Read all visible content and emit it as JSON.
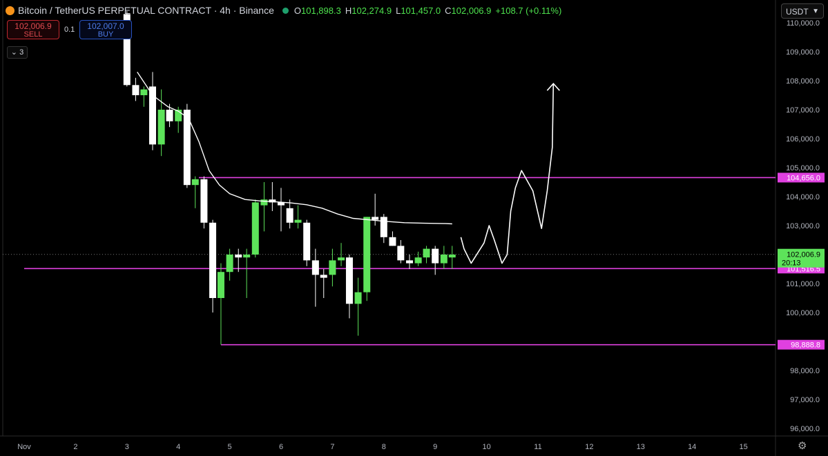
{
  "header": {
    "title": "Bitcoin / TetherUS PERPETUAL CONTRACT · 4h · Binance",
    "open_label": "O",
    "open": "101,898.3",
    "high_label": "H",
    "high": "102,274.9",
    "low_label": "L",
    "low": "101,457.0",
    "close_label": "C",
    "close": "102,006.9",
    "change": "+108.7 (+0.11%)"
  },
  "trade": {
    "sell_price": "102,006.9",
    "sell_label": "SELL",
    "buy_price": "102,007.0",
    "buy_label": "BUY",
    "quantity": "0.1"
  },
  "collapse_count": "3",
  "currency": "USDT",
  "colors": {
    "background": "#000000",
    "up_candle": "#5de35a",
    "down_candle": "#ffffff",
    "level_line": "#e040e0",
    "moving_average": "#ffffff",
    "axis_text": "#b2b5be",
    "price_tag": "#5de35a"
  },
  "chart_data": {
    "type": "candlestick",
    "timeframe": "4h",
    "ylim": [
      95700,
      110400
    ],
    "x_ticks": [
      "Nov",
      "2",
      "3",
      "4",
      "5",
      "6",
      "7",
      "8",
      "9",
      "10",
      "11",
      "12",
      "13",
      "14",
      "15"
    ],
    "y_ticks": [
      "110,000.0",
      "109,000.0",
      "108,000.0",
      "107,000.0",
      "106,000.0",
      "105,000.0",
      "104,000.0",
      "103,000.0",
      "101,000.0",
      "100,000.0",
      "98,000.0",
      "97,000.0",
      "96,000.0"
    ],
    "candles": [
      {
        "day": 3.0,
        "o": 110300,
        "h": 110400,
        "l": 107800,
        "c": 107850
      },
      {
        "day": 3.17,
        "o": 107850,
        "h": 108100,
        "l": 107300,
        "c": 107500
      },
      {
        "day": 3.33,
        "o": 107500,
        "h": 107800,
        "l": 107100,
        "c": 107700
      },
      {
        "day": 3.5,
        "o": 107800,
        "h": 108300,
        "l": 105600,
        "c": 105800
      },
      {
        "day": 3.67,
        "o": 105800,
        "h": 107700,
        "l": 105400,
        "c": 107000
      },
      {
        "day": 3.83,
        "o": 107000,
        "h": 107200,
        "l": 106400,
        "c": 106600
      },
      {
        "day": 4.0,
        "o": 106600,
        "h": 107100,
        "l": 106200,
        "c": 107000
      },
      {
        "day": 4.17,
        "o": 107000,
        "h": 107200,
        "l": 104300,
        "c": 104400
      },
      {
        "day": 4.33,
        "o": 104400,
        "h": 104700,
        "l": 103600,
        "c": 104600
      },
      {
        "day": 4.5,
        "o": 104600,
        "h": 104700,
        "l": 102900,
        "c": 103100
      },
      {
        "day": 4.67,
        "o": 103100,
        "h": 103200,
        "l": 100000,
        "c": 100500
      },
      {
        "day": 4.83,
        "o": 100500,
        "h": 101700,
        "l": 98890,
        "c": 101400
      },
      {
        "day": 5.0,
        "o": 101400,
        "h": 102200,
        "l": 101100,
        "c": 102000
      },
      {
        "day": 5.17,
        "o": 102000,
        "h": 102200,
        "l": 101400,
        "c": 101900
      },
      {
        "day": 5.33,
        "o": 101900,
        "h": 102200,
        "l": 100500,
        "c": 102000
      },
      {
        "day": 5.5,
        "o": 102000,
        "h": 103900,
        "l": 101900,
        "c": 103800
      },
      {
        "day": 5.67,
        "o": 103700,
        "h": 104500,
        "l": 102800,
        "c": 103900
      },
      {
        "day": 5.83,
        "o": 103900,
        "h": 104500,
        "l": 103500,
        "c": 103800
      },
      {
        "day": 6.0,
        "o": 103800,
        "h": 104300,
        "l": 102800,
        "c": 103700
      },
      {
        "day": 6.17,
        "o": 103600,
        "h": 103900,
        "l": 102900,
        "c": 103100
      },
      {
        "day": 6.33,
        "o": 103100,
        "h": 103700,
        "l": 102900,
        "c": 103200
      },
      {
        "day": 6.5,
        "o": 103100,
        "h": 103200,
        "l": 101600,
        "c": 101800
      },
      {
        "day": 6.67,
        "o": 101800,
        "h": 102200,
        "l": 100200,
        "c": 101300
      },
      {
        "day": 6.83,
        "o": 101300,
        "h": 101500,
        "l": 100500,
        "c": 101200
      },
      {
        "day": 7.0,
        "o": 101300,
        "h": 102200,
        "l": 100900,
        "c": 101800
      },
      {
        "day": 7.17,
        "o": 101800,
        "h": 102400,
        "l": 101600,
        "c": 101900
      },
      {
        "day": 7.33,
        "o": 101900,
        "h": 102000,
        "l": 99800,
        "c": 100300
      },
      {
        "day": 7.5,
        "o": 100300,
        "h": 101200,
        "l": 99200,
        "c": 100700
      },
      {
        "day": 7.67,
        "o": 100700,
        "h": 103300,
        "l": 100400,
        "c": 103300
      },
      {
        "day": 7.83,
        "o": 103300,
        "h": 104100,
        "l": 103000,
        "c": 103200
      },
      {
        "day": 8.0,
        "o": 103300,
        "h": 103400,
        "l": 102400,
        "c": 102600
      },
      {
        "day": 8.17,
        "o": 102600,
        "h": 102800,
        "l": 102300,
        "c": 102300
      },
      {
        "day": 8.33,
        "o": 102300,
        "h": 102500,
        "l": 101700,
        "c": 101800
      },
      {
        "day": 8.5,
        "o": 101800,
        "h": 102000,
        "l": 101500,
        "c": 101700
      },
      {
        "day": 8.67,
        "o": 101700,
        "h": 102100,
        "l": 101600,
        "c": 101900
      },
      {
        "day": 8.83,
        "o": 101900,
        "h": 102300,
        "l": 101700,
        "c": 102200
      },
      {
        "day": 9.0,
        "o": 102200,
        "h": 102300,
        "l": 101300,
        "c": 101700
      },
      {
        "day": 9.17,
        "o": 101700,
        "h": 102300,
        "l": 101500,
        "c": 102000
      },
      {
        "day": 9.33,
        "o": 101900,
        "h": 102300,
        "l": 101500,
        "c": 102000
      }
    ],
    "moving_average": {
      "days": [
        3.2,
        3.5,
        3.8,
        4.0,
        4.2,
        4.4,
        4.6,
        4.8,
        5.0,
        5.3,
        5.6,
        5.9,
        6.2,
        6.5,
        6.8,
        7.1,
        7.4,
        7.7,
        8.0,
        8.4,
        8.8,
        9.2,
        9.33
      ],
      "values": [
        108300,
        107500,
        107100,
        106950,
        106700,
        105900,
        104900,
        104400,
        104100,
        103900,
        103850,
        103820,
        103780,
        103720,
        103600,
        103400,
        103250,
        103200,
        103150,
        103100,
        103080,
        103070,
        103060
      ]
    },
    "levels": [
      {
        "value": 104656.0,
        "label": "104,656.0",
        "from_day": 4.4
      },
      {
        "value": 101516.5,
        "label": "101,516.5",
        "from_day": 1.0
      },
      {
        "value": 98888.8,
        "label": "98,888.8",
        "from_day": 4.83
      }
    ],
    "current_price": {
      "value": 102006.9,
      "label": "102,006.9",
      "countdown": "20:13"
    },
    "projection": {
      "days": [
        9.5,
        9.56,
        9.7,
        9.95,
        10.05,
        10.15,
        10.3,
        10.4,
        10.47,
        10.56,
        10.68,
        10.9,
        11.07,
        11.18,
        11.28,
        11.3
      ],
      "values": [
        102600,
        102200,
        101700,
        102400,
        103000,
        102500,
        101700,
        102000,
        103500,
        104300,
        104900,
        104200,
        102900,
        104200,
        105700,
        107900
      ]
    }
  }
}
